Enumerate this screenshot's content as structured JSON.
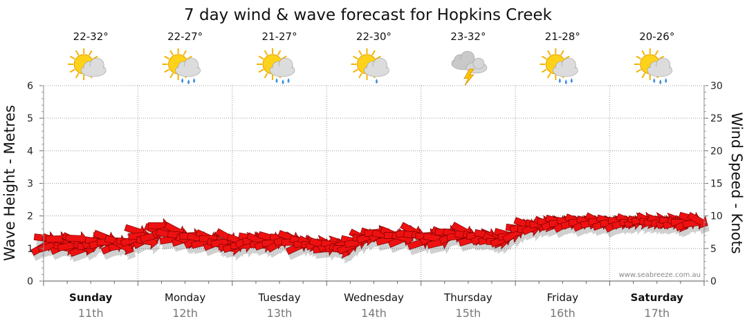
{
  "chart_data": {
    "type": "area",
    "title": "7 day wind & wave forecast for Hopkins Creek",
    "ylabel_left": "Wave Height - Metres",
    "ylabel_right": "Wind Speed - Knots",
    "ylim_left": [
      0,
      6
    ],
    "ylim_right": [
      0,
      30
    ],
    "yticks_left": [
      "0",
      "1",
      "2",
      "3",
      "4",
      "5",
      "6"
    ],
    "yticks_right": [
      "0",
      "5",
      "10",
      "15",
      "20",
      "25",
      "30"
    ],
    "grid": true,
    "credit": "www.seabreeze.com.au",
    "days": [
      {
        "name": "Sunday",
        "date": "11th",
        "temp": "22-32°",
        "icon": "sun-cloud-icon",
        "bold": true
      },
      {
        "name": "Monday",
        "date": "12th",
        "temp": "22-27°",
        "icon": "sun-cloud-rain-icon",
        "bold": false
      },
      {
        "name": "Tuesday",
        "date": "13th",
        "temp": "21-27°",
        "icon": "sun-cloud-rain-icon",
        "bold": false
      },
      {
        "name": "Wednesday",
        "date": "14th",
        "temp": "22-30°",
        "icon": "sun-cloud-shower-icon",
        "bold": false
      },
      {
        "name": "Thursday",
        "date": "15th",
        "temp": "23-32°",
        "icon": "storm-cloud-icon",
        "bold": false
      },
      {
        "name": "Friday",
        "date": "16th",
        "temp": "21-28°",
        "icon": "sun-cloud-rain-icon",
        "bold": false
      },
      {
        "name": "Saturday",
        "date": "17th",
        "temp": "20-26°",
        "icon": "sun-cloud-rain-icon",
        "bold": true
      }
    ],
    "series": [
      {
        "name": "Wind Speed - Knots",
        "color": "#ee1111",
        "values": [
          5.5,
          6.5,
          5.5,
          6,
          6.5,
          5.5,
          5,
          5.5,
          6,
          6.5,
          5,
          5,
          5.5,
          6.5,
          6,
          6,
          6.5,
          6,
          5.5,
          6,
          5.5,
          5,
          6,
          6.5,
          7.5,
          7,
          6.5,
          6,
          7,
          7.5,
          8.5,
          8,
          7,
          6.5,
          7.5,
          7,
          6.5,
          6,
          7,
          6.5,
          6.5,
          6,
          6.5,
          6.5,
          6,
          5.5,
          6,
          6.5,
          5,
          5.5,
          6,
          5.5,
          6.5,
          6.5,
          6.5,
          6,
          5.5,
          6,
          6.5,
          6,
          6,
          6.5,
          6.5,
          6.5,
          6,
          5.5,
          6,
          6,
          5.5,
          5.5,
          6,
          5.5,
          5,
          6,
          5.5,
          5.5,
          4.5,
          5,
          5.5,
          6,
          6,
          6.5,
          6.5,
          7,
          7,
          7.5,
          7.5,
          7,
          6.5,
          7,
          7,
          6.5,
          6.5,
          7.5,
          7.5,
          7,
          6,
          6.5,
          7,
          7,
          6.5,
          6,
          7,
          7.5,
          7,
          7,
          7,
          7.5,
          7,
          6.5,
          6.5,
          7,
          7,
          7,
          6.5,
          6,
          6,
          6.5,
          7,
          7,
          7.5,
          8,
          8.5,
          8.5,
          8,
          8.5,
          8.5,
          9,
          8.5,
          9,
          9,
          9,
          9,
          9,
          9,
          9,
          9,
          9,
          9,
          9,
          9,
          9,
          9,
          9,
          9,
          9,
          9,
          9,
          9,
          9,
          9,
          9.5,
          9,
          9.5,
          9,
          9,
          9.5,
          9,
          9,
          9.5,
          9,
          9,
          8.5,
          9,
          9,
          9.5,
          9,
          9
        ]
      }
    ]
  }
}
